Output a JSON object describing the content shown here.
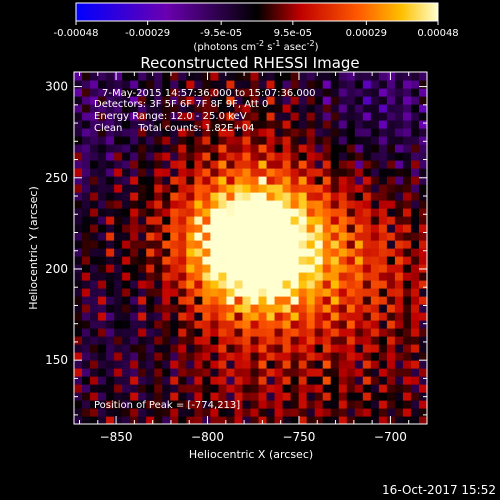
{
  "chart_data": {
    "type": "heatmap",
    "title": "Reconstructed RHESSI Image",
    "xlabel": "Heliocentric X (arcsec)",
    "ylabel": "Heliocentric Y (arcsec)",
    "xlim": [
      -873,
      -680
    ],
    "ylim": [
      115,
      308
    ],
    "xticks": [
      -850,
      -800,
      -750,
      -700
    ],
    "yticks": [
      150,
      200,
      250,
      300
    ],
    "colorbar": {
      "ticks": [
        -0.00048,
        -0.00029,
        -9.5e-05,
        9.5e-05,
        0.00029,
        0.00048
      ],
      "tick_labels": [
        "-0.00048",
        "-0.00029",
        "-9.5e-05",
        "9.5e-05",
        "0.00029",
        "0.00048"
      ],
      "units_html": "(photons cm<tspan dy='-4' font-size='8'>-2</tspan><tspan dy='4'> s</tspan><tspan dy='-4' font-size='8'>-1</tspan><tspan dy='4'> asec</tspan><tspan dy='-4' font-size='8'>-2</tspan><tspan dy='4'>)</tspan>",
      "range": [
        -0.00048,
        0.00048
      ]
    },
    "peak": [
      -774,
      213
    ],
    "annotations": [
      "7-May-2015 14:57:36.000 to 15:07:36.000",
      "Detectors: 3F 5F 6F 7F 8F 9F, Att 0",
      "Energy Range: 12.0 - 25.0 keV",
      "Clean     Total counts: 1.82E+04"
    ],
    "peak_label": "Position of Peak = [-774,213]",
    "timestamp": "16-Oct-2017 15:52"
  }
}
